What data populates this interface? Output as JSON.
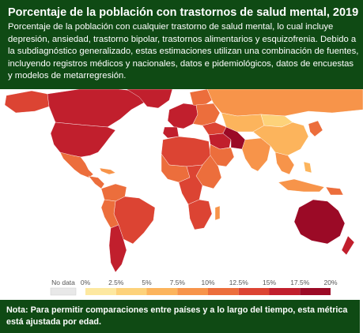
{
  "header": {
    "title": "Porcentaje de la población con trastornos de salud mental, 2019",
    "subtitle": "Porcentaje de la población con cualquier trastorno de salud mental, lo cual incluye depresión, ansiedad, trastorno bipolar, trastornos alimentarios y esquizofrenia. Debido a la subdiagnóstico generalizado, estas estimaciones utilizan una combinación de fuentes, incluyendo registros médicos y nacionales, datos e pidemiológicos, datos de encuestas y modelos de metarregresión."
  },
  "legend": {
    "no_data_label": "No data",
    "bins": [
      {
        "label": "0%",
        "color": "#fff7c2"
      },
      {
        "label": "2.5%",
        "color": "#fde8a0"
      },
      {
        "label": "5%",
        "color": "#fdd27a"
      },
      {
        "label": "7.5%",
        "color": "#fcb45c"
      },
      {
        "label": "10%",
        "color": "#f7944a"
      },
      {
        "label": "12.5%",
        "color": "#ec6e3c"
      },
      {
        "label": "15%",
        "color": "#dc4433"
      },
      {
        "label": "17.5%",
        "color": "#c11f2d"
      },
      {
        "label": "20%",
        "color": "#9b0a26"
      }
    ]
  },
  "footer": {
    "note": "Nota: Para permitir comparaciones entre países y a lo largo del tiempo, esta métrica está ajustada por edad."
  },
  "colors": {
    "header_bg": "#0f4a14",
    "ocean": "#ffffff",
    "no_data": "#e8e8e8"
  }
}
